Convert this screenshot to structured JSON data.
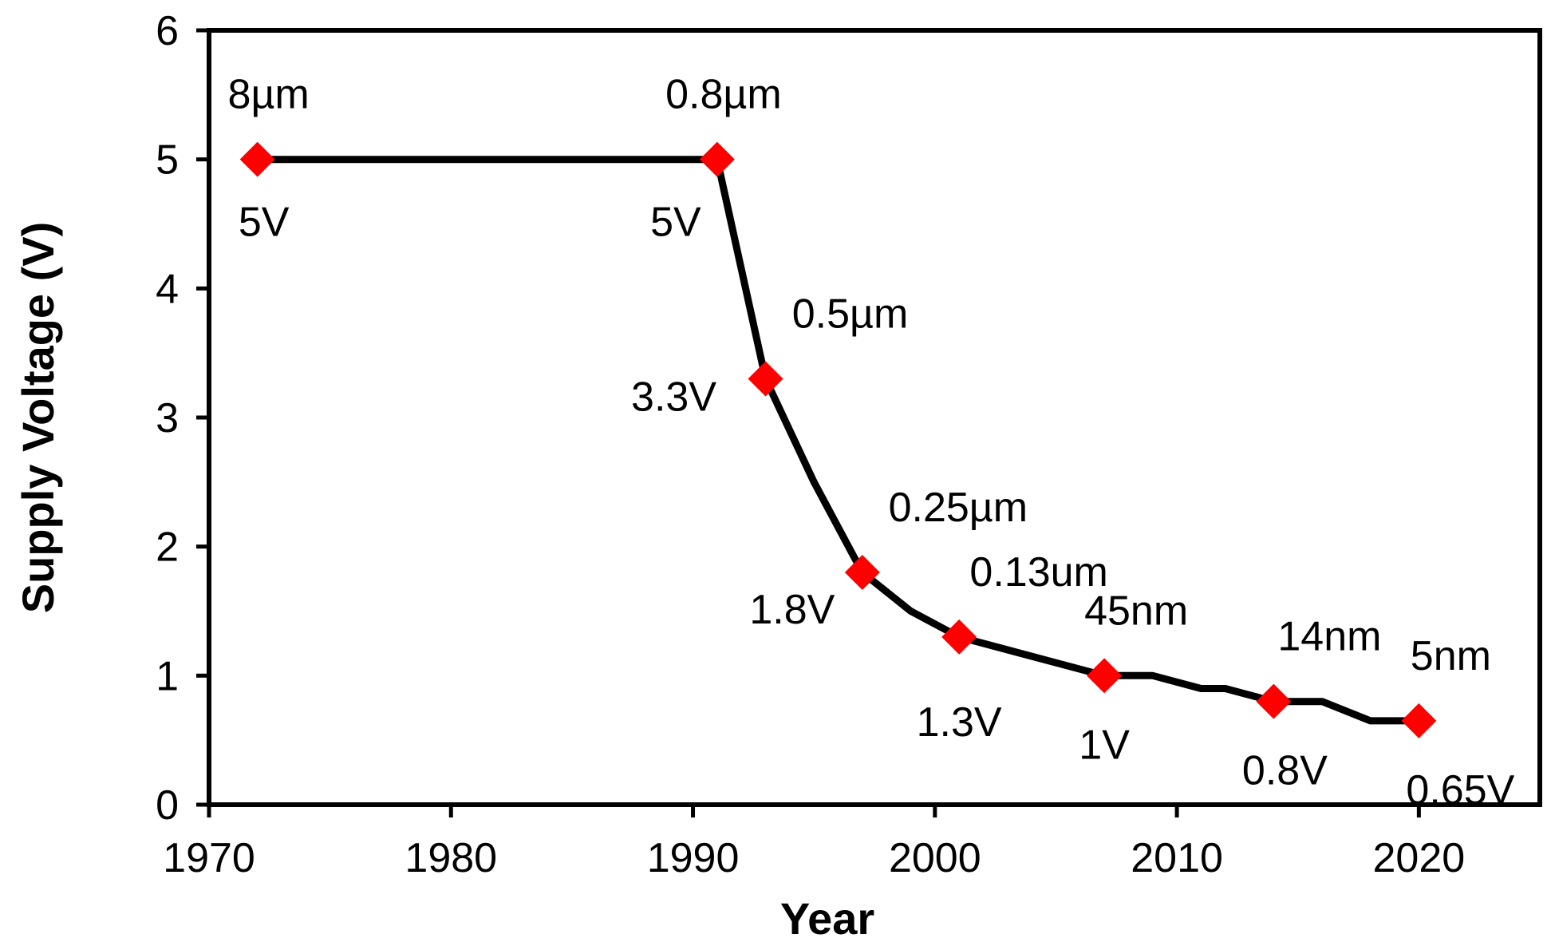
{
  "chart_data": {
    "type": "line",
    "title": "",
    "xlabel": "Year",
    "ylabel": "Supply Voltage (V)",
    "xlim": [
      1970,
      2025
    ],
    "ylim": [
      0,
      6
    ],
    "xticks": [
      1970,
      1980,
      1990,
      2000,
      2010,
      2020
    ],
    "yticks": [
      0,
      1,
      2,
      3,
      4,
      5,
      6
    ],
    "grid": false,
    "line_color": "#000000",
    "marker_color": "#ff0000",
    "series": [
      {
        "name": "Supply Voltage",
        "x": [
          1972,
          1991,
          1993,
          1995,
          1997,
          1999,
          2001,
          2003,
          2005,
          2007,
          2009,
          2011,
          2012,
          2014,
          2016,
          2018,
          2020
        ],
        "y": [
          5,
          5,
          3.3,
          2.5,
          1.8,
          1.5,
          1.3,
          1.2,
          1.1,
          1.0,
          1.0,
          0.9,
          0.9,
          0.8,
          0.8,
          0.65,
          0.65
        ]
      }
    ],
    "markers": [
      {
        "x": 1972,
        "y": 5,
        "node": "8µm",
        "voltage": "5V"
      },
      {
        "x": 1991,
        "y": 5,
        "node": "0.8µm",
        "voltage": "5V"
      },
      {
        "x": 1993,
        "y": 3.3,
        "node": "0.5µm",
        "voltage": "3.3V"
      },
      {
        "x": 1997,
        "y": 1.8,
        "node": "0.25µm",
        "voltage": "1.8V"
      },
      {
        "x": 2001,
        "y": 1.3,
        "node": "0.13um",
        "voltage": "1.3V"
      },
      {
        "x": 2007,
        "y": 1.0,
        "node": "45nm",
        "voltage": "1V"
      },
      {
        "x": 2014,
        "y": 0.8,
        "node": "14nm",
        "voltage": "0.8V"
      },
      {
        "x": 2020,
        "y": 0.65,
        "node": "5nm",
        "voltage": "0.65V"
      }
    ]
  }
}
